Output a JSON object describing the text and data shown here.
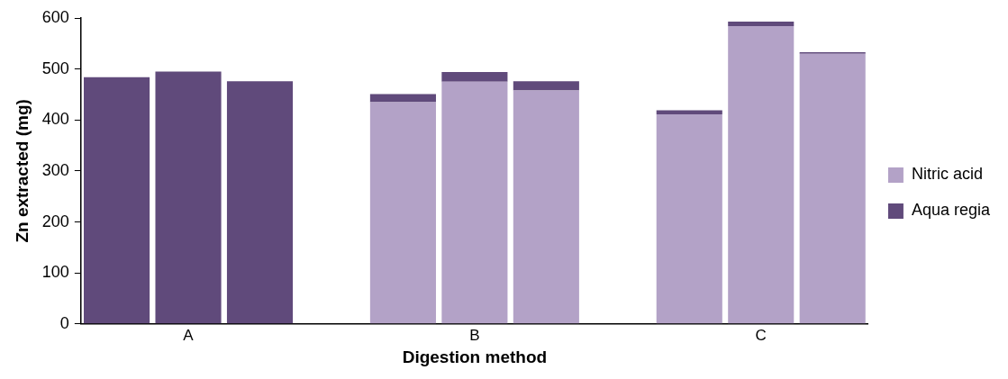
{
  "chart_data": {
    "type": "bar",
    "xlabel": "Digestion method",
    "ylabel": "Zn extracted (mg)",
    "categories": [
      null,
      "A",
      null,
      null,
      null,
      "B",
      null,
      null,
      null,
      "C",
      null
    ],
    "series": [
      {
        "name": "Nitric acid",
        "color": "#b3a2c7",
        "values": [
          null,
          null,
          null,
          null,
          435,
          475,
          458,
          null,
          411,
          584,
          530
        ]
      },
      {
        "name": "Aqua regia",
        "color": "#604a7b",
        "values": [
          484,
          495,
          476,
          null,
          16,
          19,
          18,
          null,
          8,
          9,
          3
        ]
      }
    ],
    "stacked": true,
    "ylim": [
      0,
      600
    ],
    "yticks": [
      0,
      100,
      200,
      300,
      400,
      500,
      600
    ],
    "grid": false,
    "legend": "right"
  }
}
